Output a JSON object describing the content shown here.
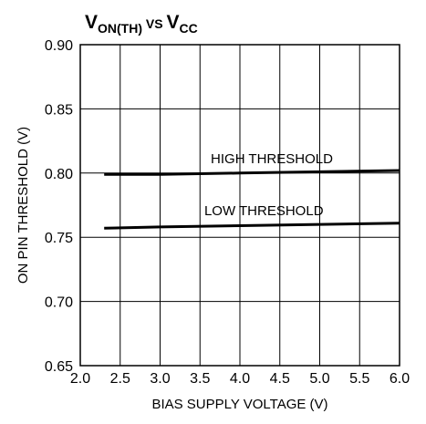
{
  "chart_data": {
    "type": "line",
    "title": {
      "v1": "V",
      "v1_sub": "ON(TH)",
      "vs": " VS ",
      "v2": "V",
      "v2_sub": "CC"
    },
    "xlabel": "BIAS SUPPLY VOLTAGE (V)",
    "ylabel": "ON PIN THRESHOLD (V)",
    "xlim": [
      2.0,
      6.0
    ],
    "ylim": [
      0.65,
      0.9
    ],
    "xticks": [
      2.0,
      2.5,
      3.0,
      3.5,
      4.0,
      4.5,
      5.0,
      5.5,
      6.0
    ],
    "xtick_labels": [
      "2.0",
      "2.5",
      "3.0",
      "3.5",
      "4.0",
      "4.5",
      "5.0",
      "5.5",
      "6.0"
    ],
    "yticks": [
      0.65,
      0.7,
      0.75,
      0.8,
      0.85,
      0.9
    ],
    "ytick_labels": [
      "0.65",
      "0.70",
      "0.75",
      "0.80",
      "0.85",
      "0.90"
    ],
    "grid": true,
    "series": [
      {
        "name": "HIGH THRESHOLD",
        "x": [
          2.3,
          3.0,
          4.0,
          5.0,
          6.0
        ],
        "y": [
          0.799,
          0.799,
          0.8,
          0.801,
          0.802
        ]
      },
      {
        "name": "LOW THRESHOLD",
        "x": [
          2.3,
          3.0,
          4.0,
          5.0,
          6.0
        ],
        "y": [
          0.757,
          0.758,
          0.759,
          0.76,
          0.761
        ]
      }
    ],
    "colors": {
      "line": "#000000",
      "grid": "#000000",
      "background": "#ffffff"
    }
  }
}
